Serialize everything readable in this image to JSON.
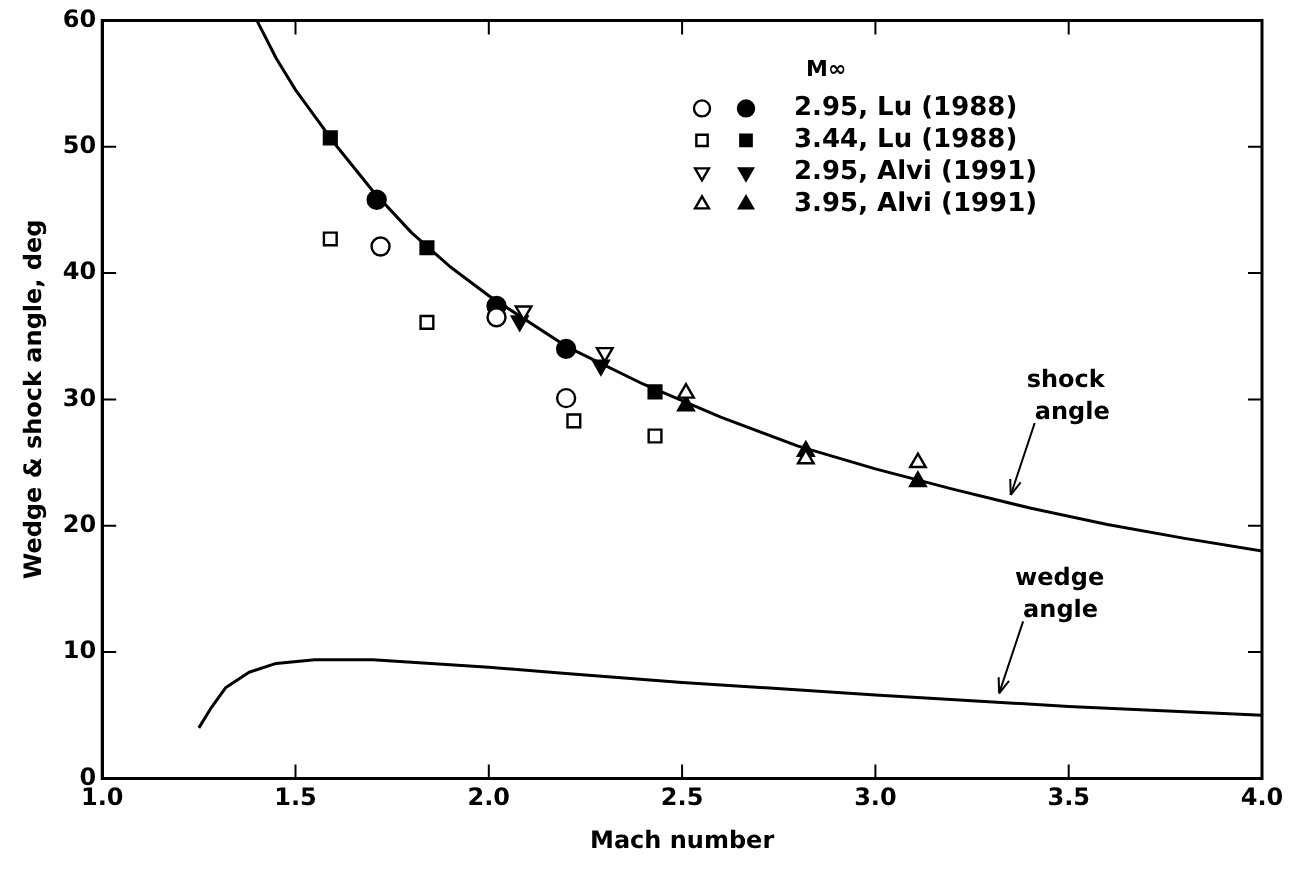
{
  "chart_data": {
    "type": "scatter",
    "xlabel": "Mach number",
    "ylabel": "Wedge & shock angle, deg",
    "legend_title": "M∞",
    "legend": "top right",
    "grid": false,
    "xlim": [
      1.0,
      4.0
    ],
    "xticks": [
      {
        "value": 1.0,
        "label": "1.0"
      },
      {
        "value": 1.5,
        "label": "1.5"
      },
      {
        "value": 2.0,
        "label": "2.0"
      },
      {
        "value": 2.5,
        "label": "2.5"
      },
      {
        "value": 3.0,
        "label": "3.0"
      },
      {
        "value": 3.5,
        "label": "3.5"
      },
      {
        "value": 4.0,
        "label": "4.0"
      }
    ],
    "ylim": [
      0,
      60
    ],
    "yticks": [
      0,
      10,
      20,
      30,
      40,
      50,
      60
    ],
    "series": [
      {
        "color": "#000000",
        "marker": "circle-open",
        "x": [
          1.72,
          2.02,
          2.2
        ],
        "values": [
          42.1,
          36.5,
          30.1
        ]
      },
      {
        "name": "2.95, Lu (1988)",
        "color": "#000000",
        "marker": "circle",
        "x": [
          1.71,
          2.02,
          2.2
        ],
        "values": [
          45.8,
          37.4,
          34
        ]
      },
      {
        "color": "#000000",
        "marker": "square-open",
        "x": [
          1.59,
          1.84,
          2.22,
          2.43
        ],
        "values": [
          42.7,
          36.1,
          28.3,
          27.1
        ]
      },
      {
        "name": "3.44, Lu (1988)",
        "color": "#000000",
        "marker": "square",
        "x": [
          1.59,
          1.84,
          2.43
        ],
        "values": [
          50.7,
          42,
          30.6
        ]
      },
      {
        "color": "#000000",
        "marker": "triangle-down-open",
        "x": [
          2.09,
          2.3
        ],
        "values": [
          37,
          33.7
        ]
      },
      {
        "name": "2.95, Alvi (1991)",
        "color": "#000000",
        "marker": "triangle-down",
        "x": [
          2.08,
          2.29
        ],
        "values": [
          36.2,
          32.7
        ]
      },
      {
        "color": "#000000",
        "marker": "triangle-open",
        "x": [
          2.51,
          2.82,
          3.11
        ],
        "values": [
          30.5,
          25.3,
          25
        ]
      },
      {
        "name": "3.95, Alvi (1991)",
        "color": "#000000",
        "marker": "triangle",
        "x": [
          2.51,
          2.82,
          3.11
        ],
        "values": [
          29.5,
          25.9,
          23.5
        ]
      },
      {
        "type": "line",
        "color": "#000000",
        "marker": "none",
        "x": [
          1.4,
          1.45,
          1.5,
          1.6,
          1.7,
          1.8,
          1.9,
          2.0,
          2.2,
          2.4,
          2.6,
          2.8,
          3.0,
          3.2,
          3.4,
          3.6,
          3.8,
          4.0
        ],
        "values": [
          60,
          57,
          54.5,
          50.3,
          46.5,
          43.2,
          40.5,
          38.2,
          34.2,
          31.2,
          28.6,
          26.3,
          24.5,
          22.9,
          21.4,
          20.1,
          19,
          18
        ]
      },
      {
        "type": "line",
        "color": "#000000",
        "marker": "none",
        "x": [
          1.25,
          1.28,
          1.32,
          1.38,
          1.45,
          1.55,
          1.7,
          1.8,
          2.0,
          2.2,
          2.5,
          3.0,
          3.5,
          4.0
        ],
        "values": [
          4,
          5.5,
          7.2,
          8.4,
          9.1,
          9.4,
          9.4,
          9.2,
          8.8,
          8.3,
          7.6,
          6.6,
          5.7,
          5
        ]
      }
    ],
    "annotations": [
      {
        "text": "shock\nangle",
        "x": 3.35,
        "y": 21.8
      },
      {
        "text": "wedge\nangle",
        "x": 3.32,
        "y": 6.1
      }
    ]
  }
}
